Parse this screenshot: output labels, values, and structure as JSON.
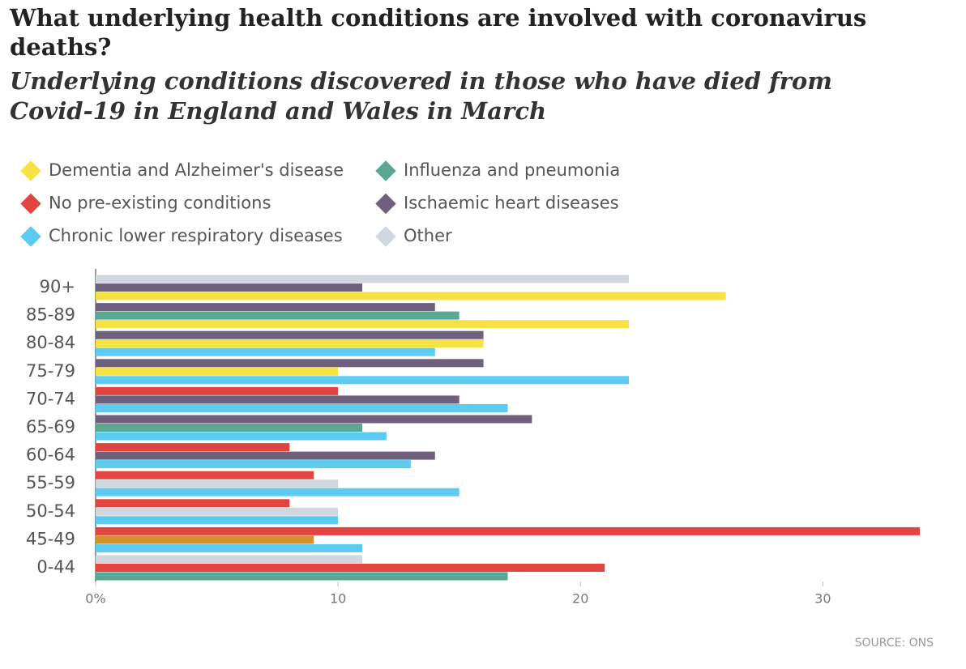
{
  "chart_data": {
    "type": "bar",
    "orientation": "horizontal",
    "title": "What underlying health conditions are involved with coronavirus deaths?",
    "subtitle": "Underlying conditions discovered in those who have died from Covid-19 in England and Wales in March",
    "source": "SOURCE: ONS",
    "categories": [
      "90+",
      "85-89",
      "80-84",
      "75-79",
      "70-74",
      "65-69",
      "60-64",
      "55-59",
      "50-54",
      "45-49",
      "0-44"
    ],
    "series": [
      {
        "name": "Dementia and Alzheimer's disease",
        "color": "#f7e243",
        "values": [
          26,
          22,
          16,
          10,
          null,
          null,
          null,
          null,
          null,
          null,
          null
        ]
      },
      {
        "name": "No pre-existing conditions",
        "color": "#e2453f",
        "values": [
          null,
          null,
          null,
          null,
          10,
          null,
          8,
          9,
          8,
          34,
          21
        ]
      },
      {
        "name": "Chronic lower respiratory diseases",
        "color": "#5ccbf2",
        "values": [
          null,
          null,
          14,
          22,
          17,
          12,
          13,
          15,
          10,
          11,
          null
        ]
      },
      {
        "name": "Influenza and pneumonia",
        "color": "#5aa893",
        "values": [
          null,
          15,
          null,
          null,
          null,
          11,
          null,
          null,
          null,
          null,
          17
        ]
      },
      {
        "name": "Ischaemic heart diseases",
        "color": "#6f617d",
        "values": [
          11,
          14,
          16,
          16,
          15,
          18,
          14,
          null,
          null,
          null,
          null
        ]
      },
      {
        "name": "Other",
        "color": "#d1d7df",
        "values": [
          22,
          null,
          null,
          null,
          null,
          null,
          null,
          10,
          10,
          null,
          11
        ]
      },
      {
        "color": "#d4912b",
        "values": [
          null,
          null,
          null,
          null,
          null,
          null,
          null,
          null,
          null,
          9,
          null
        ]
      }
    ],
    "xlim": [
      0,
      34
    ],
    "xticks": [
      {
        "value": 0,
        "label": "0%"
      },
      10,
      20,
      30
    ],
    "legend": "top-left"
  }
}
